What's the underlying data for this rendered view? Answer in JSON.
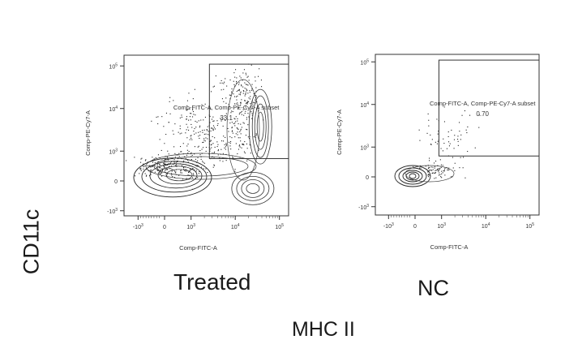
{
  "figure": {
    "y_marker_label": "CD11c",
    "x_marker_label": "MHC II",
    "panel_captions": [
      "Treated",
      "NC"
    ]
  },
  "chart_data": [
    {
      "type": "scatter",
      "subtype": "flow-cytometry contour plot with outliers",
      "caption": "Treated",
      "xlabel": "Comp-FITC-A",
      "ylabel": "Comp-PE-Cy7-A",
      "x_scale": "biexponential",
      "y_scale": "biexponential",
      "x_ticks": [
        "-10^3",
        "0",
        "10^3",
        "10^4",
        "10^5"
      ],
      "y_ticks": [
        "-10^3",
        "0",
        "10^3",
        "10^4",
        "10^5"
      ],
      "gate": {
        "name": "Comp-FITC-A, Comp-PE-Cy7-A subset",
        "percent": "33.1",
        "x_range": [
          2600,
          180000
        ],
        "y_range": [
          750,
          110000
        ]
      },
      "populations": [
        {
          "name": "MHC II low / CD11c low",
          "x_center": 60,
          "y_center": 60
        },
        {
          "name": "MHC II high / CD11c low",
          "x_center": 25000,
          "y_center": 180
        },
        {
          "name": "MHC II high / CD11c high",
          "x_center": 30000,
          "y_center": 9000
        }
      ]
    },
    {
      "type": "scatter",
      "subtype": "flow-cytometry contour plot with outliers",
      "caption": "NC",
      "xlabel": "Comp-FITC-A",
      "ylabel": "Comp-PE-Cy7-A",
      "x_scale": "biexponential",
      "y_scale": "biexponential",
      "x_ticks": [
        "-10^3",
        "0",
        "10^3",
        "10^4",
        "10^5"
      ],
      "y_ticks": [
        "-10^3",
        "0",
        "10^3",
        "10^4",
        "10^5"
      ],
      "gate": {
        "name": "Comp-FITC-A, Comp-PE-Cy7-A subset",
        "percent": "0.70",
        "x_range": [
          900,
          180000
        ],
        "y_range": [
          700,
          110000
        ]
      },
      "populations": [
        {
          "name": "MHC II low / CD11c low",
          "x_center": 0,
          "y_center": 0
        }
      ]
    }
  ]
}
